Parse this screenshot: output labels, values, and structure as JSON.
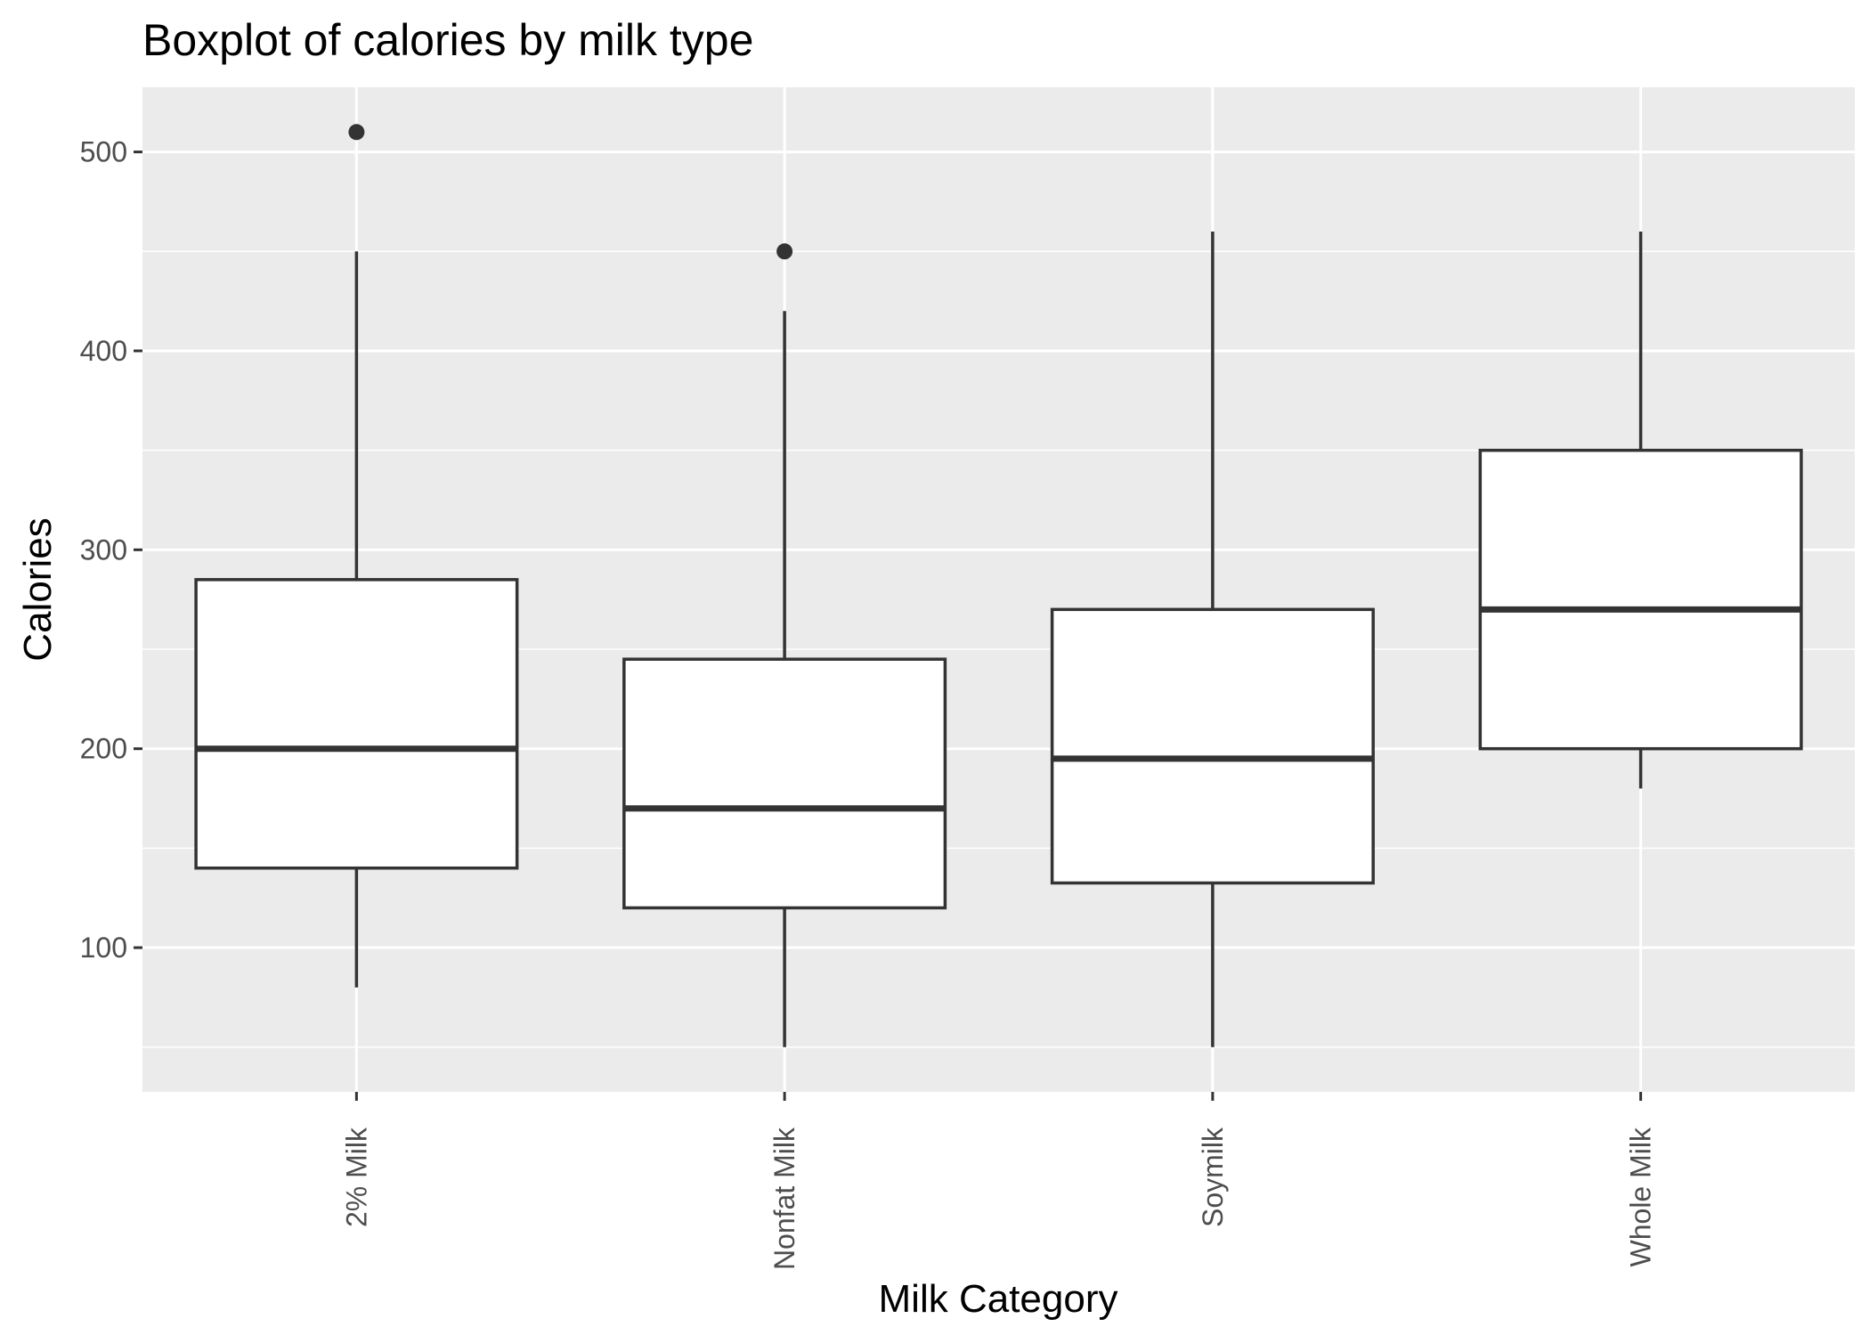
{
  "chart_data": {
    "type": "boxplot",
    "title": "Boxplot of calories by milk type",
    "xlabel": "Milk Category",
    "ylabel": "Calories",
    "ylim": [
      27.5,
      532.5
    ],
    "yticks": [
      100,
      200,
      300,
      400,
      500
    ],
    "grid": true,
    "legend": "none",
    "categories": [
      "2% Milk",
      "Nonfat Milk",
      "Soymilk",
      "Whole Milk"
    ],
    "boxes": [
      {
        "category": "2% Milk",
        "whisker_low": 80,
        "q1": 140,
        "median": 200,
        "q3": 285,
        "whisker_high": 450,
        "outliers": [
          510
        ]
      },
      {
        "category": "Nonfat Milk",
        "whisker_low": 50,
        "q1": 120,
        "median": 170,
        "q3": 245,
        "whisker_high": 420,
        "outliers": [
          450
        ]
      },
      {
        "category": "Soymilk",
        "whisker_low": 50,
        "q1": 132.5,
        "median": 195,
        "q3": 270,
        "whisker_high": 460,
        "outliers": []
      },
      {
        "category": "Whole Milk",
        "whisker_low": 180,
        "q1": 200,
        "median": 270,
        "q3": 350,
        "whisker_high": 460,
        "outliers": []
      }
    ],
    "colors": {
      "panel_background": "#EBEBEB",
      "grid_line": "#FFFFFF",
      "box_fill": "#FFFFFF",
      "box_stroke": "#333333",
      "outlier": "#333333",
      "tick_mark": "#333333"
    }
  }
}
